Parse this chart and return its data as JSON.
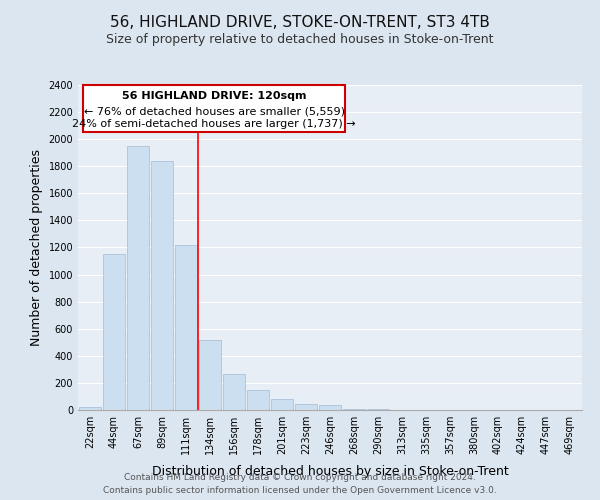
{
  "title": "56, HIGHLAND DRIVE, STOKE-ON-TRENT, ST3 4TB",
  "subtitle": "Size of property relative to detached houses in Stoke-on-Trent",
  "xlabel": "Distribution of detached houses by size in Stoke-on-Trent",
  "ylabel": "Number of detached properties",
  "footer_line1": "Contains HM Land Registry data © Crown copyright and database right 2024.",
  "footer_line2": "Contains public sector information licensed under the Open Government Licence v3.0.",
  "bin_labels": [
    "22sqm",
    "44sqm",
    "67sqm",
    "89sqm",
    "111sqm",
    "134sqm",
    "156sqm",
    "178sqm",
    "201sqm",
    "223sqm",
    "246sqm",
    "268sqm",
    "290sqm",
    "313sqm",
    "335sqm",
    "357sqm",
    "380sqm",
    "402sqm",
    "424sqm",
    "447sqm",
    "469sqm"
  ],
  "bar_values": [
    25,
    1150,
    1950,
    1840,
    1220,
    520,
    265,
    148,
    80,
    45,
    38,
    10,
    5,
    2,
    1,
    0,
    0,
    0,
    0,
    0,
    0
  ],
  "bar_color": "#ccdff0",
  "bar_edge_color": "#a0bcd8",
  "red_line_x": 4.5,
  "annotation_text_line1": "56 HIGHLAND DRIVE: 120sqm",
  "annotation_text_line2": "← 76% of detached houses are smaller (5,559)",
  "annotation_text_line3": "24% of semi-detached houses are larger (1,737) →",
  "ylim": [
    0,
    2400
  ],
  "yticks": [
    0,
    200,
    400,
    600,
    800,
    1000,
    1200,
    1400,
    1600,
    1800,
    2000,
    2200,
    2400
  ],
  "bg_color": "#dce6f0",
  "plot_bg_color": "#e8eef5",
  "grid_color": "#ffffff",
  "title_fontsize": 11,
  "subtitle_fontsize": 9,
  "xlabel_fontsize": 9,
  "ylabel_fontsize": 9,
  "tick_fontsize": 7,
  "annotation_fontsize": 8,
  "footer_fontsize": 6.5
}
